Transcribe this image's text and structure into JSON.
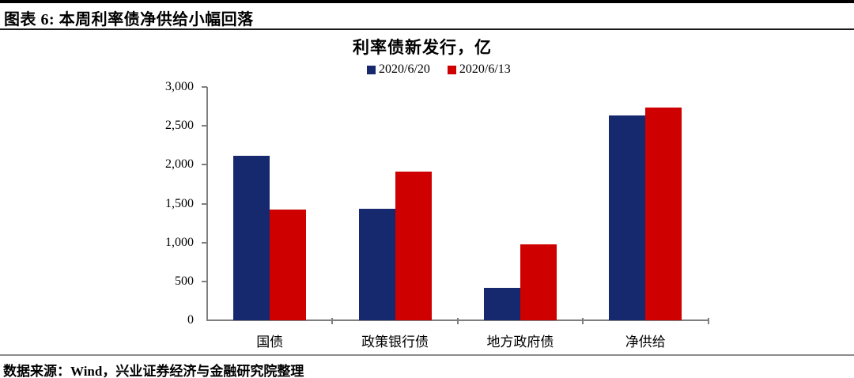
{
  "page": {
    "header_title": "图表 6:  本周利率债净供给小幅回落",
    "source_note": "数据来源：Wind，兴业证券经济与金融研究院整理"
  },
  "chart_data": {
    "type": "bar",
    "title": "利率债新发行，亿",
    "categories": [
      "国债",
      "政策银行债",
      "地方政府债",
      "净供给"
    ],
    "series": [
      {
        "name": "2020/6/20",
        "color": "#16296F",
        "values": [
          2120,
          1430,
          420,
          2630
        ]
      },
      {
        "name": "2020/6/13",
        "color": "#CE0000",
        "values": [
          1420,
          1910,
          980,
          2740
        ]
      }
    ],
    "ylim": [
      0,
      3000
    ],
    "ytick_step": 500,
    "ytick_labels": [
      "0",
      "500",
      "1,000",
      "1,500",
      "2,000",
      "2,500",
      "3,000"
    ],
    "grid": false,
    "legend_position": "top",
    "axis_color": "#7f7f7f"
  }
}
